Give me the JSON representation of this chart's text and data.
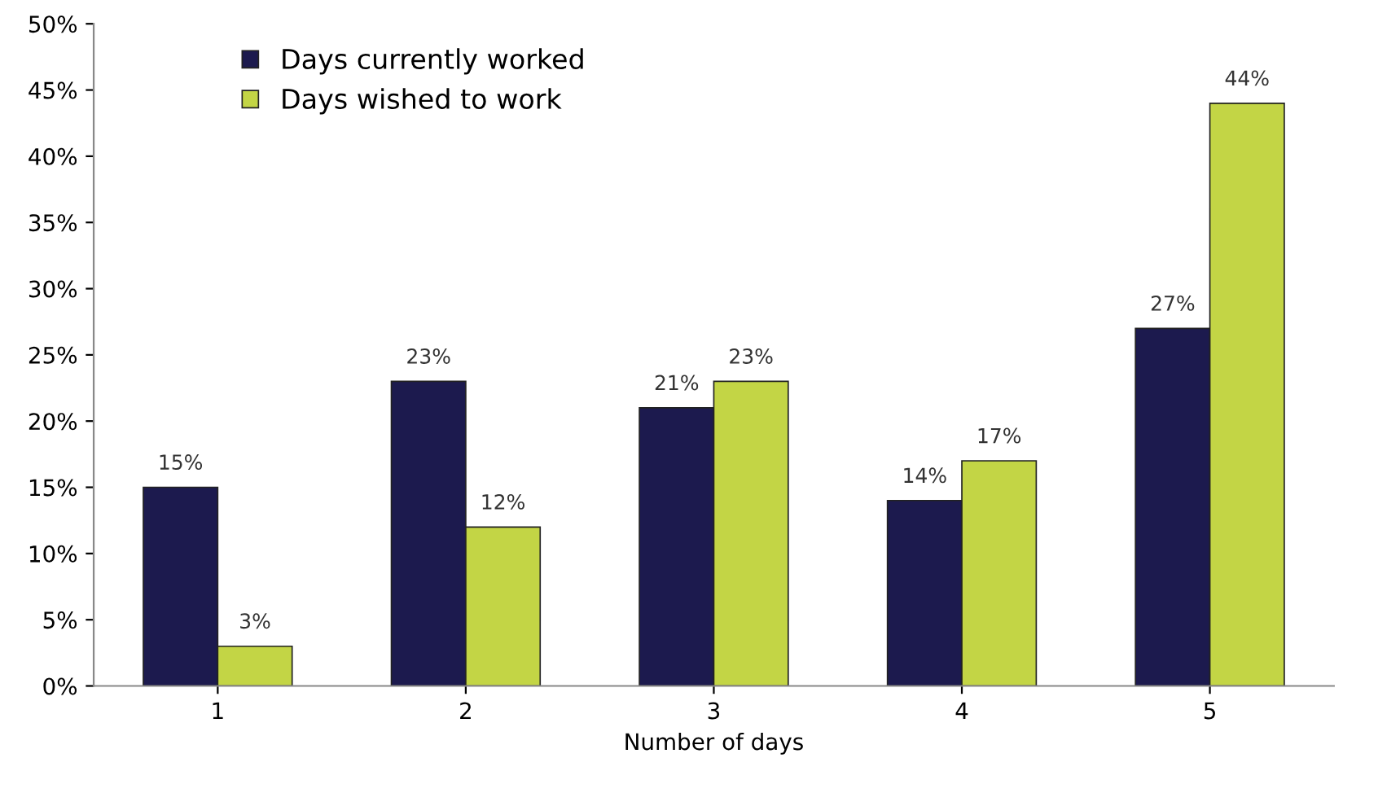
{
  "chart_data": {
    "type": "bar",
    "xlabel": "Number of days",
    "categories": [
      "1",
      "2",
      "3",
      "4",
      "5"
    ],
    "series": [
      {
        "name": "Days currently worked",
        "color": "#1c1a4e",
        "values": [
          15,
          23,
          21,
          14,
          27
        ],
        "value_labels": [
          "15%",
          "23%",
          "21%",
          "14%",
          "27%"
        ]
      },
      {
        "name": "Days wished to work",
        "color": "#c3d545",
        "values": [
          3,
          12,
          23,
          17,
          44
        ],
        "value_labels": [
          "3%",
          "12%",
          "23%",
          "17%",
          "44%"
        ]
      }
    ],
    "ylim": [
      0,
      50
    ],
    "yticks": [
      {
        "value": 0,
        "label": "0%"
      },
      {
        "value": 5,
        "label": "5%"
      },
      {
        "value": 10,
        "label": "10%"
      },
      {
        "value": 15,
        "label": "15%"
      },
      {
        "value": 20,
        "label": "20%"
      },
      {
        "value": 25,
        "label": "25%"
      },
      {
        "value": 30,
        "label": "30%"
      },
      {
        "value": 35,
        "label": "35%"
      },
      {
        "value": 40,
        "label": "40%"
      },
      {
        "value": 45,
        "label": "45%"
      },
      {
        "value": 50,
        "label": "50%"
      }
    ],
    "grid": false,
    "legend": "top left"
  }
}
